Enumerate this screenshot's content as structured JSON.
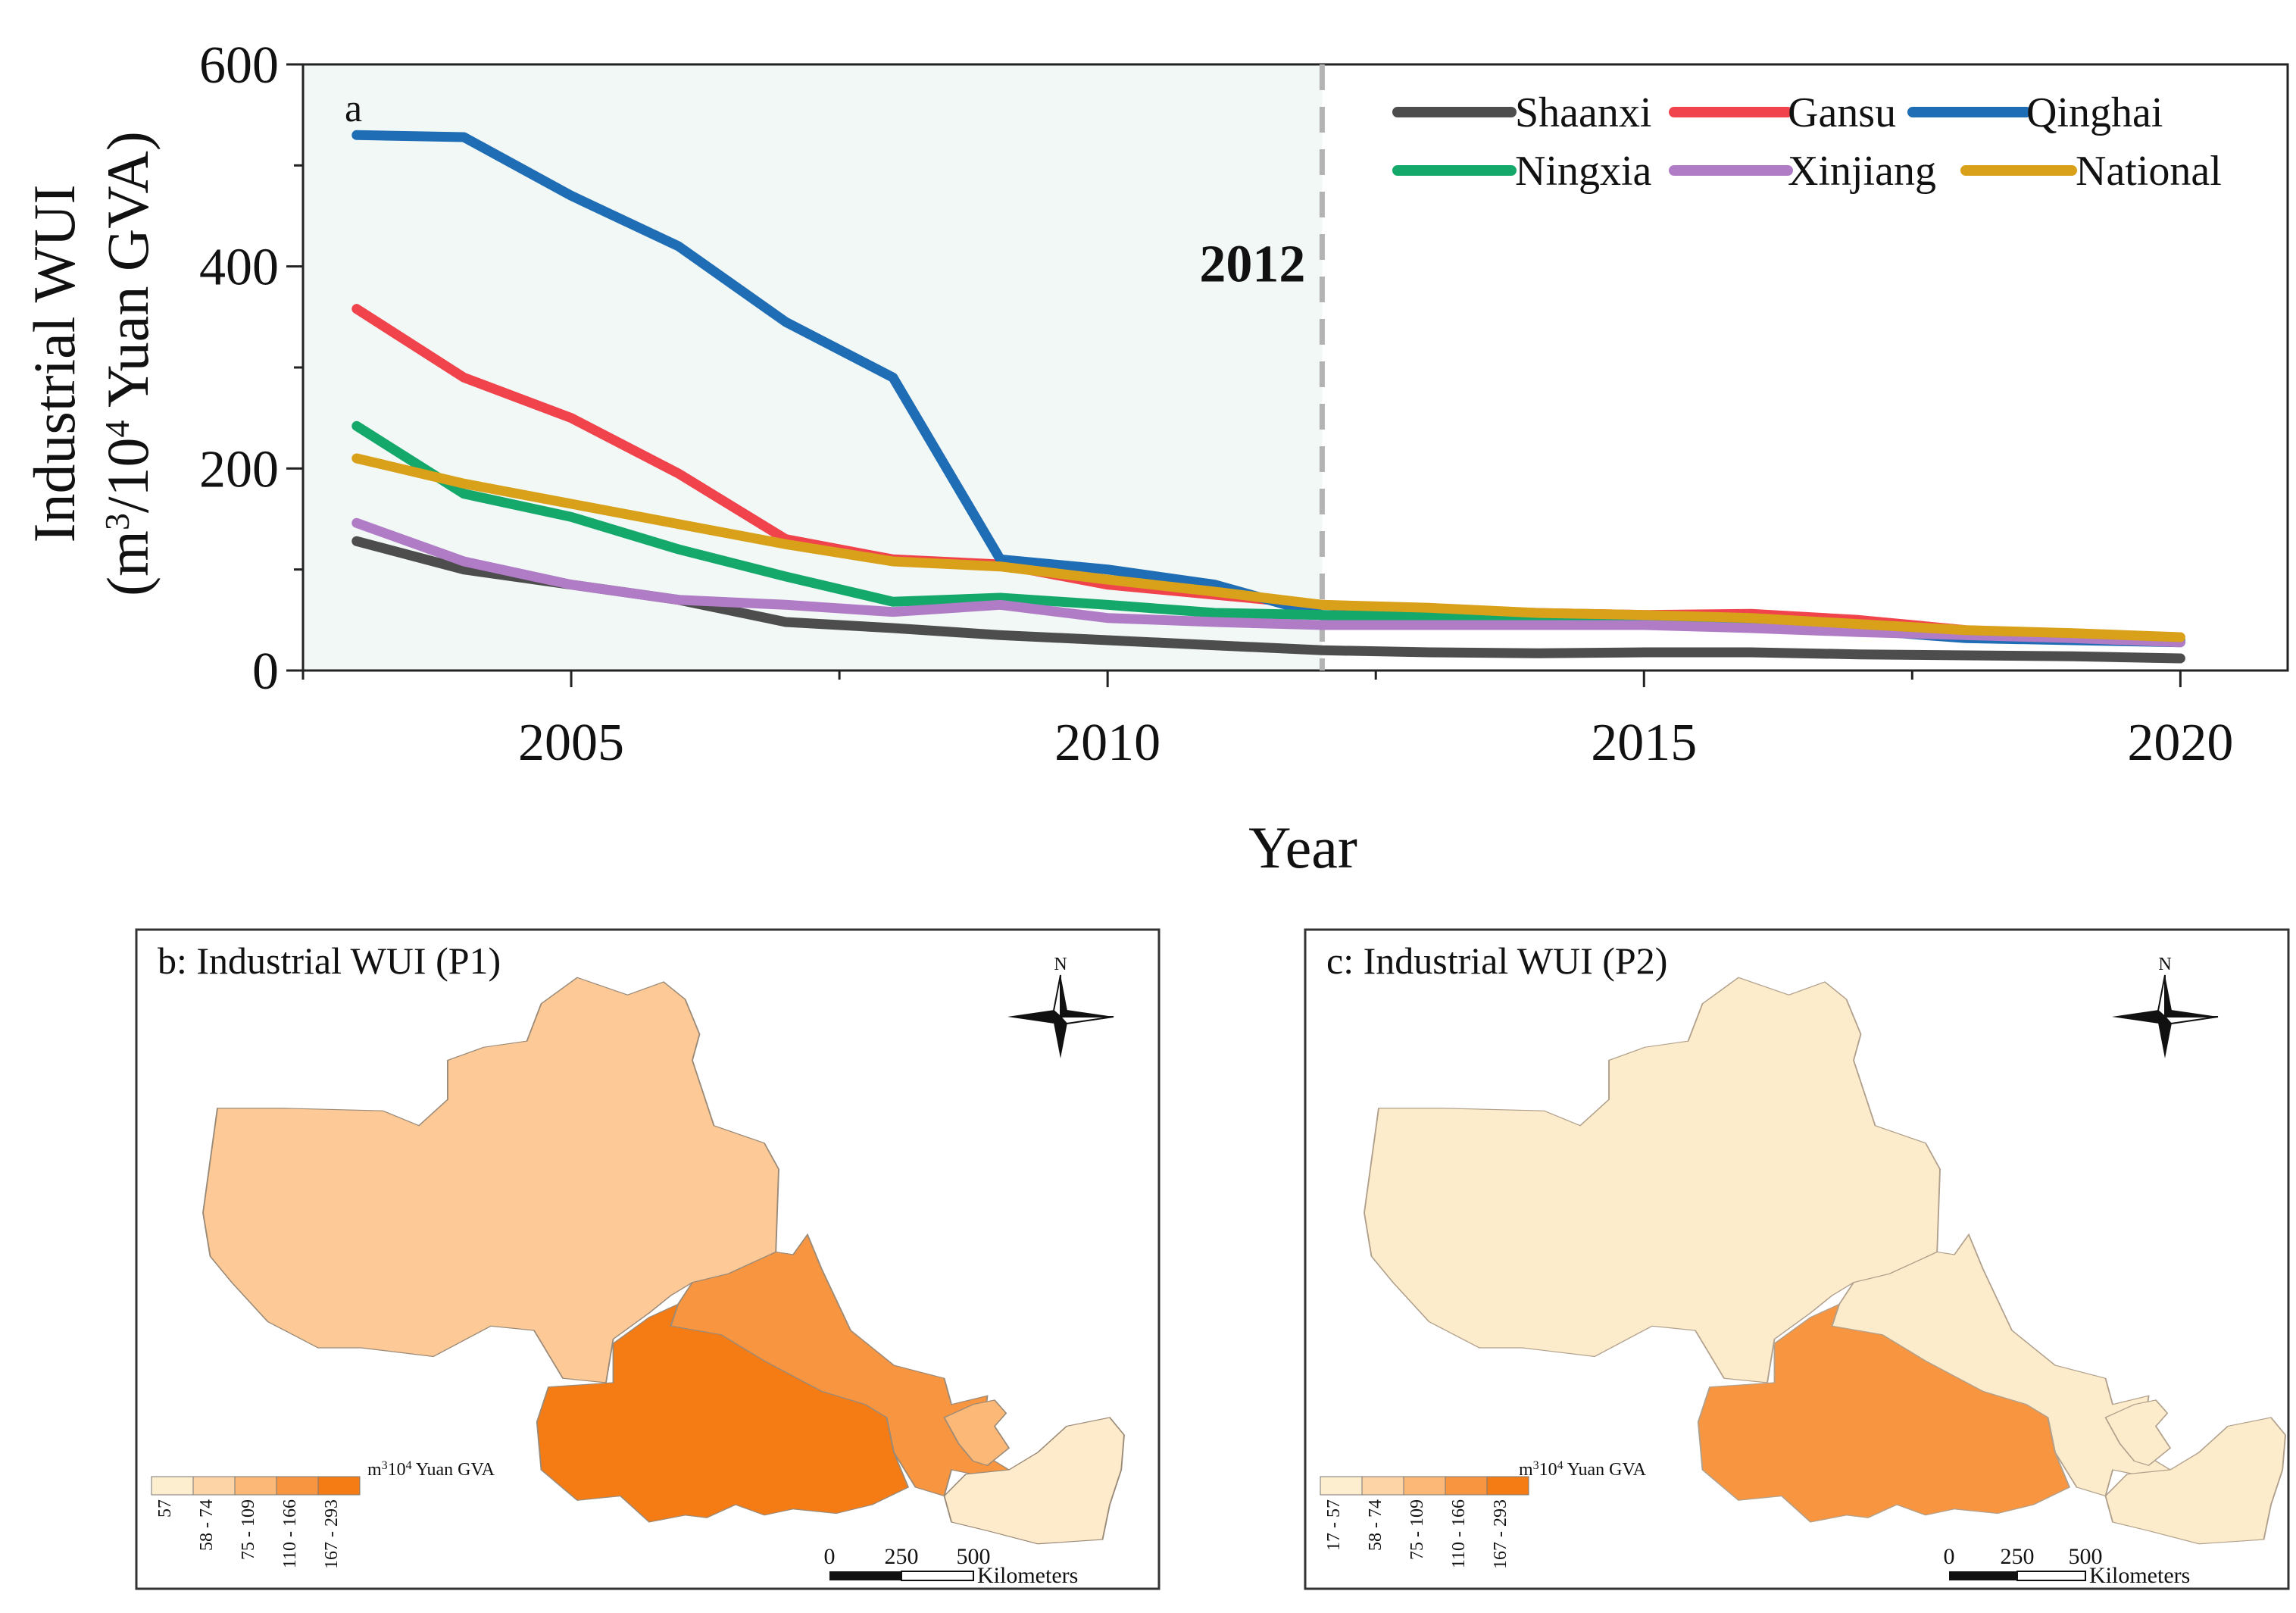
{
  "chart_data": [
    {
      "type": "line",
      "panel_label": "a",
      "x": [
        2003,
        2004,
        2005,
        2006,
        2007,
        2008,
        2009,
        2010,
        2011,
        2012,
        2013,
        2014,
        2015,
        2016,
        2017,
        2018,
        2019,
        2020
      ],
      "xlim": [
        2002.5,
        2021
      ],
      "ylim": [
        0,
        600
      ],
      "xticks": [
        2005,
        2010,
        2015,
        2020
      ],
      "yticks": [
        0,
        200,
        400,
        600
      ],
      "xlabel": "Year",
      "ylabel_line1": "Industrial WUI",
      "ylabel_line2_pre": "(m",
      "ylabel_sup1": "3",
      "ylabel_line2_mid": "/10",
      "ylabel_sup2": "4",
      "ylabel_line2_post": " Yuan GVA)",
      "marker_line": {
        "x": 2012,
        "label": "2012"
      },
      "shaded_period": [
        2002.5,
        2012
      ],
      "colors": {
        "shade": "#f1f8f6",
        "marker": "#b3b3b3",
        "marker_text": "#8a8a8a"
      },
      "legend_position": "top-right",
      "series": [
        {
          "name": "Shaanxi",
          "color": "#4d4d4d",
          "values": [
            128,
            100,
            85,
            70,
            48,
            42,
            35,
            30,
            25,
            20,
            18,
            17,
            18,
            18,
            16,
            15,
            14,
            12
          ]
        },
        {
          "name": "Gansu",
          "color": "#f0434b",
          "values": [
            358,
            290,
            250,
            195,
            130,
            110,
            105,
            85,
            75,
            65,
            60,
            57,
            55,
            56,
            50,
            40,
            35,
            30
          ]
        },
        {
          "name": "Qinghai",
          "color": "#1f6db5",
          "values": [
            530,
            528,
            470,
            420,
            345,
            290,
            110,
            100,
            85,
            55,
            52,
            50,
            50,
            45,
            40,
            32,
            30,
            28
          ]
        },
        {
          "name": "Ningxia",
          "color": "#14a86a",
          "values": [
            242,
            175,
            152,
            120,
            93,
            68,
            72,
            65,
            57,
            55,
            53,
            50,
            50,
            45,
            40,
            35,
            33,
            30
          ]
        },
        {
          "name": "Xinjiang",
          "color": "#b07cc6",
          "values": [
            146,
            108,
            85,
            70,
            65,
            58,
            65,
            52,
            48,
            45,
            45,
            45,
            45,
            42,
            38,
            35,
            32,
            28
          ]
        },
        {
          "name": "National",
          "color": "#d9a019",
          "values": [
            210,
            185,
            165,
            145,
            125,
            108,
            103,
            90,
            78,
            65,
            62,
            57,
            55,
            52,
            46,
            40,
            37,
            33
          ]
        }
      ]
    }
  ],
  "maps": [
    {
      "title": "b: Industrial WUI (P1)",
      "north": "N",
      "regions": [
        {
          "name": "Xinjiang",
          "fill": "#fcc997"
        },
        {
          "name": "Gansu",
          "fill": "#f79541"
        },
        {
          "name": "Qinghai",
          "fill": "#f57c14"
        },
        {
          "name": "Ningxia",
          "fill": "#fbb877"
        },
        {
          "name": "Shaanxi",
          "fill": "#feebcb"
        }
      ],
      "legend_unit_pre": "m",
      "legend_unit_sup1": "3",
      "legend_unit_mid": "10",
      "legend_unit_sup2": "4",
      "legend_unit_post": " Yuan GVA",
      "legend_classes": [
        {
          "label": "57",
          "color": "#fdeecf"
        },
        {
          "label": "58 - 74",
          "color": "#fcd4a6"
        },
        {
          "label": "75 - 109",
          "color": "#fbb877"
        },
        {
          "label": "110 - 166",
          "color": "#f79541"
        },
        {
          "label": "167 - 293",
          "color": "#f57c14"
        }
      ],
      "scale_ticks": [
        "0",
        "250",
        "500"
      ],
      "scale_unit": "Kilometers"
    },
    {
      "title": "c: Industrial WUI (P2)",
      "north": "N",
      "regions": [
        {
          "name": "Xinjiang",
          "fill": "#fdeccb"
        },
        {
          "name": "Gansu",
          "fill": "#fdeccb"
        },
        {
          "name": "Qinghai",
          "fill": "#f79541"
        },
        {
          "name": "Ningxia",
          "fill": "#fdeccb"
        },
        {
          "name": "Shaanxi",
          "fill": "#fdeccb"
        }
      ],
      "legend_unit_pre": "m",
      "legend_unit_sup1": "3",
      "legend_unit_mid": "10",
      "legend_unit_sup2": "4",
      "legend_unit_post": " Yuan GVA",
      "legend_classes": [
        {
          "label": "17 - 57",
          "color": "#fdeecf"
        },
        {
          "label": "58 - 74",
          "color": "#fcd4a6"
        },
        {
          "label": "75 - 109",
          "color": "#fbb877"
        },
        {
          "label": "110 - 166",
          "color": "#f79541"
        },
        {
          "label": "167 - 293",
          "color": "#f57c14"
        }
      ],
      "scale_ticks": [
        "0",
        "250",
        "500"
      ],
      "scale_unit": "Kilometers"
    }
  ]
}
